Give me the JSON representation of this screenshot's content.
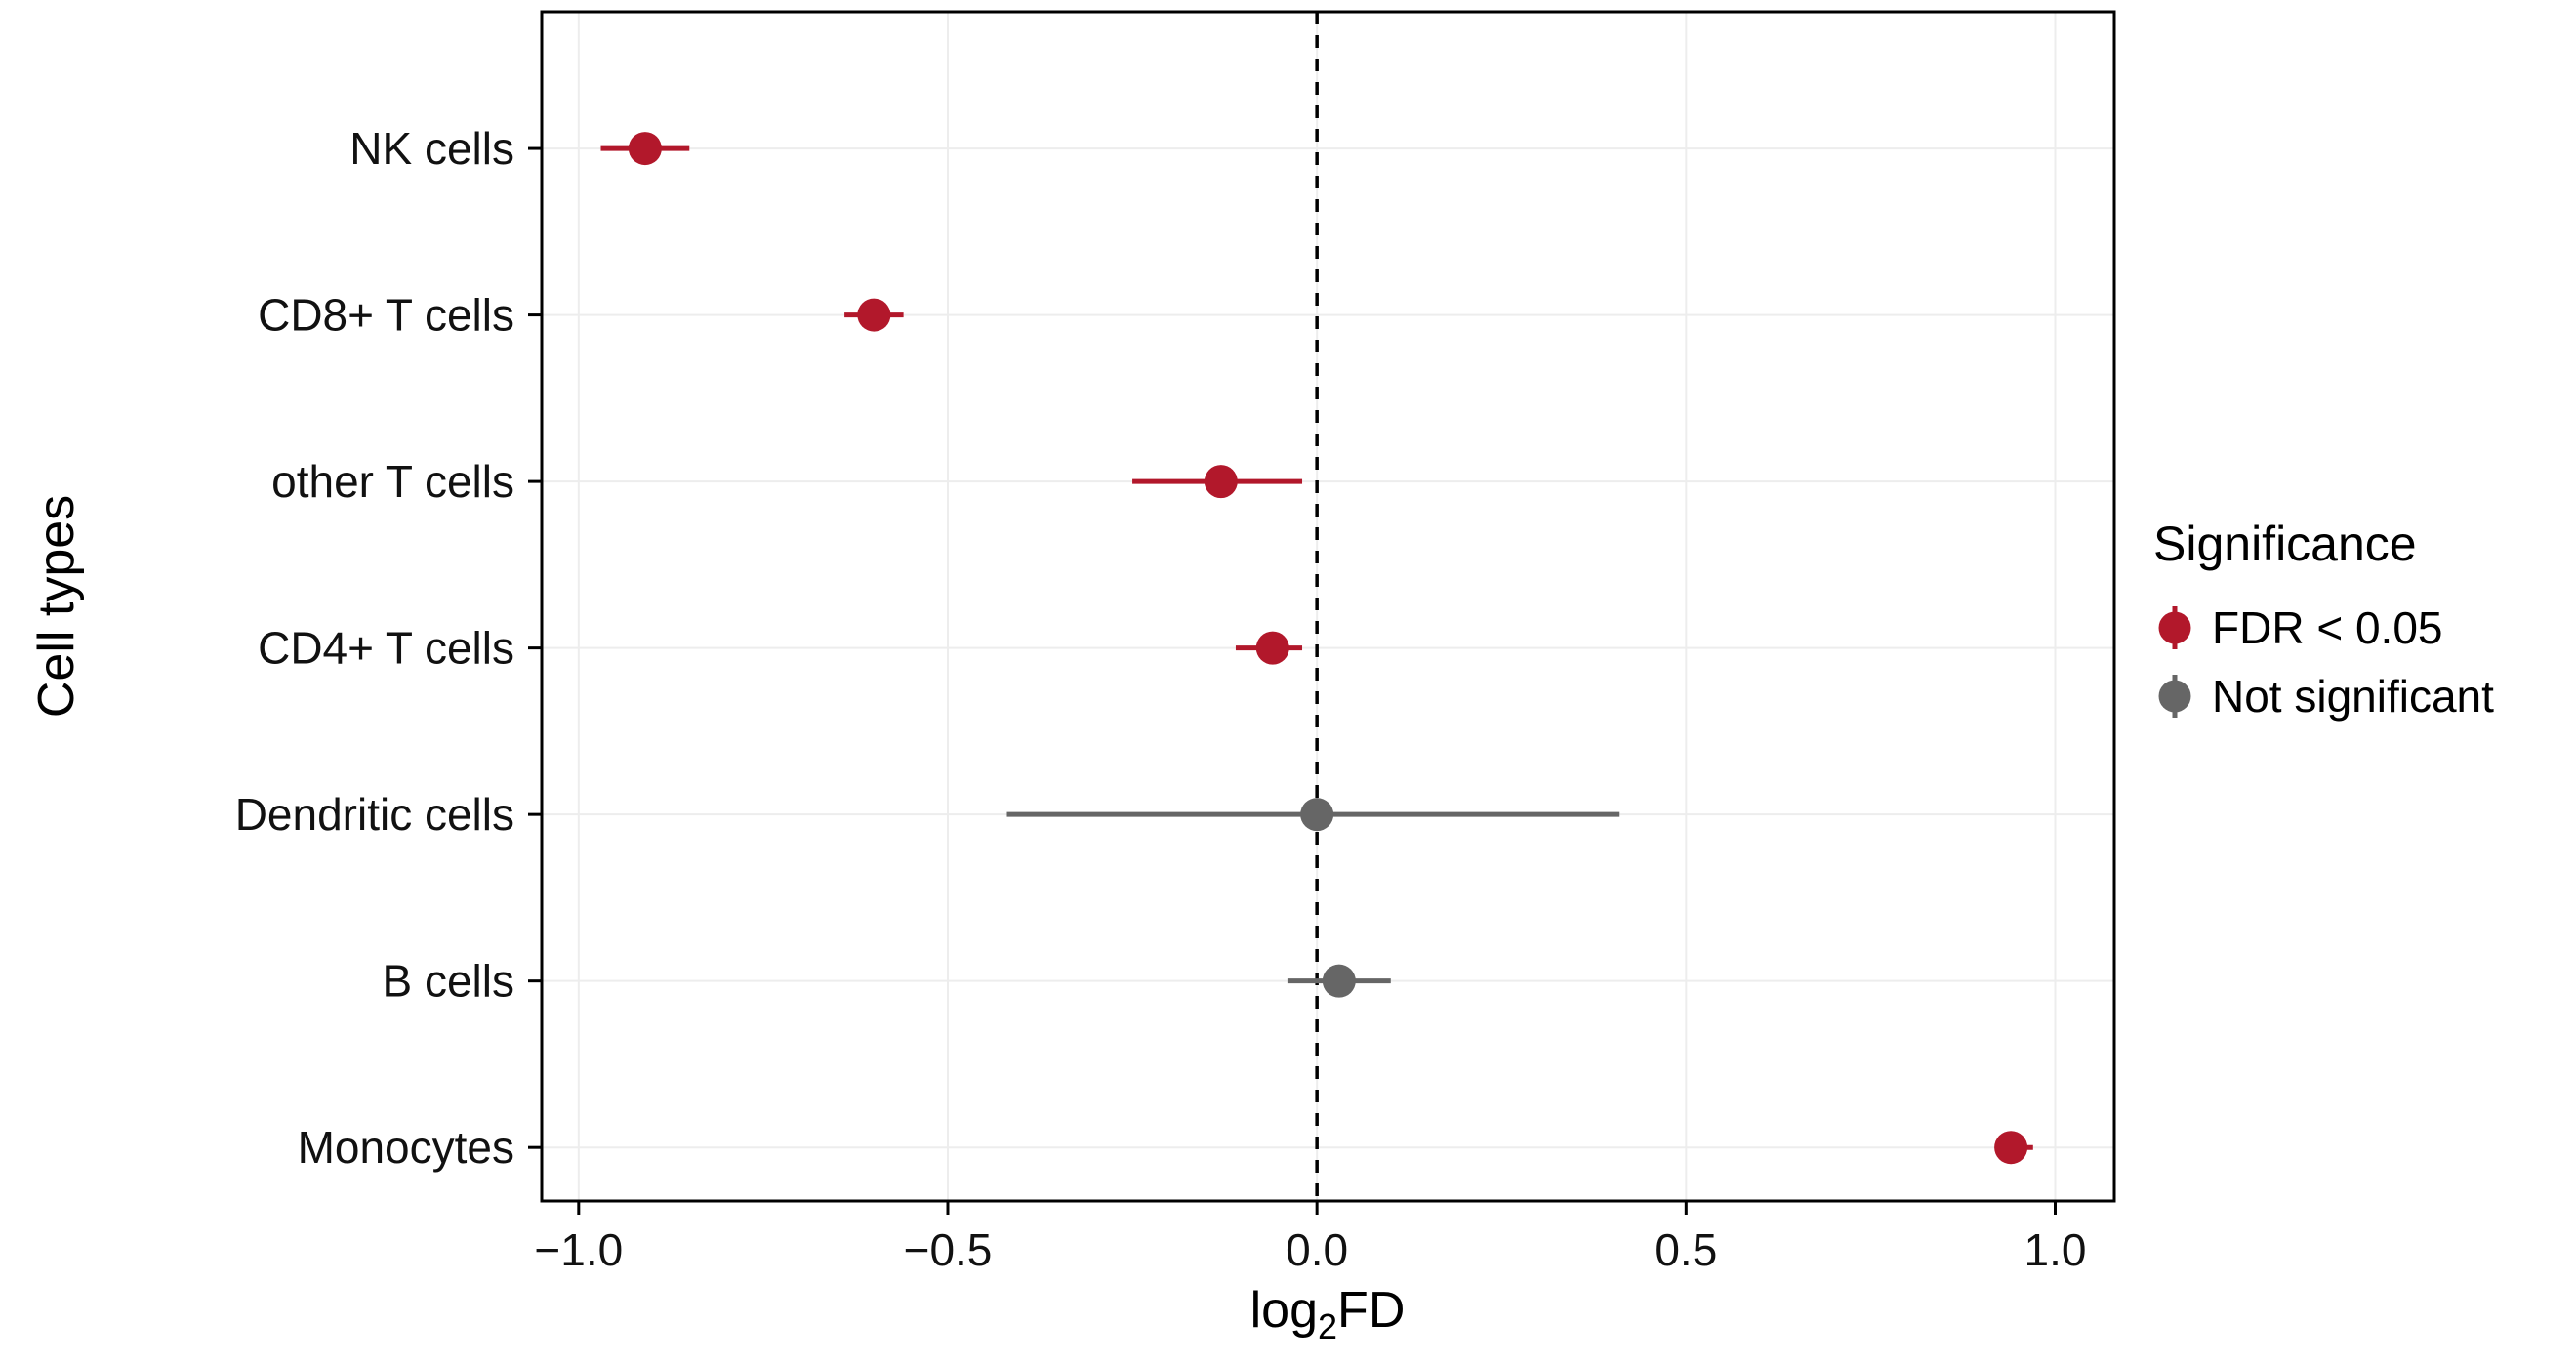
{
  "chart_data": {
    "type": "scatter",
    "subtype": "forest-pointrange",
    "title": "",
    "xlabel": "log2FD",
    "xlabel_parts": {
      "prefix": "log",
      "sub": "2",
      "suffix": "FD"
    },
    "ylabel": "Cell types",
    "xlim": [
      -1.05,
      1.08
    ],
    "x_ticks": [
      -1.0,
      -0.5,
      0.0,
      0.5,
      1.0
    ],
    "x_tick_labels": [
      "−1.0",
      "−0.5",
      "0.0",
      "0.5",
      "1.0"
    ],
    "grid": true,
    "zero_line": {
      "x": 0.0,
      "style": "dashed"
    },
    "categories": [
      "NK cells",
      "CD8+ T cells",
      "other T cells",
      "CD4+ T cells",
      "Dendritic cells",
      "B cells",
      "Monocytes"
    ],
    "points": [
      {
        "category": "NK cells",
        "estimate": -0.91,
        "ci_low": -0.97,
        "ci_high": -0.85,
        "significant": true,
        "significance": "FDR < 0.05"
      },
      {
        "category": "CD8+ T cells",
        "estimate": -0.6,
        "ci_low": -0.64,
        "ci_high": -0.56,
        "significant": true,
        "significance": "FDR < 0.05"
      },
      {
        "category": "other T cells",
        "estimate": -0.13,
        "ci_low": -0.25,
        "ci_high": -0.02,
        "significant": true,
        "significance": "FDR < 0.05"
      },
      {
        "category": "CD4+ T cells",
        "estimate": -0.06,
        "ci_low": -0.11,
        "ci_high": -0.02,
        "significant": true,
        "significance": "FDR < 0.05"
      },
      {
        "category": "Dendritic cells",
        "estimate": 0.0,
        "ci_low": -0.42,
        "ci_high": 0.41,
        "significant": false,
        "significance": "Not significant"
      },
      {
        "category": "B cells",
        "estimate": 0.03,
        "ci_low": -0.04,
        "ci_high": 0.1,
        "significant": false,
        "significance": "Not significant"
      },
      {
        "category": "Monocytes",
        "estimate": 0.94,
        "ci_low": 0.92,
        "ci_high": 0.97,
        "significant": true,
        "significance": "FDR < 0.05"
      }
    ],
    "legend": {
      "title": "Significance",
      "position": "right",
      "items": [
        {
          "label": "FDR < 0.05",
          "color": "#b2182b"
        },
        {
          "label": "Not significant",
          "color": "#666666"
        }
      ]
    },
    "colors": {
      "significant": "#b2182b",
      "not_significant": "#666666",
      "grid": "#ededed",
      "panel_border": "#000000",
      "text": "#111111"
    }
  }
}
